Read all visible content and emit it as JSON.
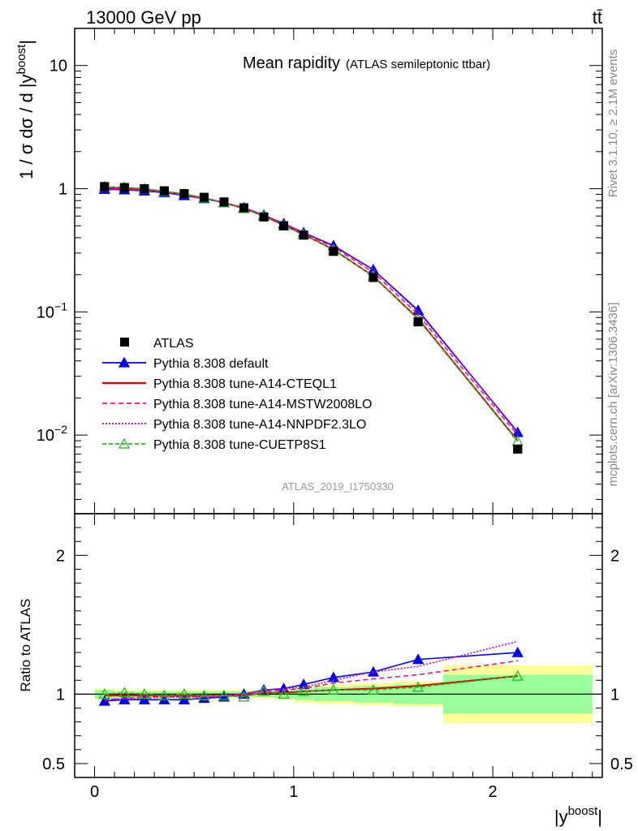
{
  "header": {
    "energy_label": "13000 GeV pp",
    "process_label": "tt̄"
  },
  "side_labels": {
    "rivet": "Rivet 3.1.10, ≥ 2.1M events",
    "source": "mcplots.cern.ch [arXiv:1306.3436]"
  },
  "analysis_id": "ATLAS_2019_I1750330",
  "chart_data": [
    {
      "type": "line",
      "title": "Mean rapidity",
      "subtitle": "(ATLAS semileptonic ttbar)",
      "ylabel": "1 / σ dσ / d |y^boost|",
      "xlabel": "|y^boost|",
      "yscale": "log",
      "xlim": [
        -0.1,
        2.55
      ],
      "ylim": [
        0.0023,
        20
      ],
      "x_ticks": [
        "0",
        "1",
        "2"
      ],
      "y_ticks": [
        "10^-2",
        "10^-1",
        "1",
        "10"
      ],
      "legend_position": "bottom-left",
      "x": [
        0.05,
        0.15,
        0.25,
        0.35,
        0.45,
        0.55,
        0.65,
        0.75,
        0.85,
        0.95,
        1.05,
        1.2,
        1.4,
        1.625,
        2.125
      ],
      "series": [
        {
          "name": "ATLAS",
          "style": "marker-square",
          "color": "#000000",
          "values": [
            1.04,
            1.02,
            1.0,
            0.96,
            0.91,
            0.85,
            0.78,
            0.7,
            0.59,
            0.5,
            0.42,
            0.31,
            0.19,
            0.083,
            0.0077
          ]
        },
        {
          "name": "Pythia 8.308 default",
          "style": "line-triangle",
          "color": "#0000ee",
          "values": [
            0.99,
            0.98,
            0.96,
            0.93,
            0.88,
            0.83,
            0.77,
            0.7,
            0.61,
            0.52,
            0.44,
            0.345,
            0.22,
            0.103,
            0.0105
          ]
        },
        {
          "name": "Pythia 8.308 tune-A14-CTEQL1",
          "style": "solid",
          "color": "#dd0000",
          "values": [
            1.02,
            1.01,
            0.99,
            0.95,
            0.9,
            0.84,
            0.77,
            0.69,
            0.6,
            0.505,
            0.425,
            0.32,
            0.195,
            0.088,
            0.009
          ]
        },
        {
          "name": "Pythia 8.308 tune-A14-MSTW2008LO",
          "style": "dashed",
          "color": "#ee1188",
          "values": [
            1.0,
            0.99,
            0.975,
            0.94,
            0.89,
            0.83,
            0.77,
            0.7,
            0.605,
            0.515,
            0.435,
            0.335,
            0.21,
            0.095,
            0.01
          ]
        },
        {
          "name": "Pythia 8.308 tune-A14-NNPDF2.3LO",
          "style": "dotted",
          "color": "#cc00cc",
          "values": [
            1.0,
            0.99,
            0.97,
            0.94,
            0.89,
            0.83,
            0.77,
            0.7,
            0.61,
            0.52,
            0.44,
            0.34,
            0.22,
            0.1,
            0.0107
          ]
        },
        {
          "name": "Pythia 8.308 tune-CUETP8S1",
          "style": "dashed-open-triangle",
          "color": "#22bb22",
          "values": [
            1.04,
            1.03,
            1.0,
            0.95,
            0.91,
            0.84,
            0.77,
            0.69,
            0.6,
            0.5,
            0.425,
            0.32,
            0.195,
            0.087,
            0.0089
          ]
        }
      ]
    },
    {
      "type": "line",
      "title": "",
      "ylabel": "Ratio to ATLAS",
      "xlabel": "|y^boost|",
      "xlim": [
        -0.1,
        2.55
      ],
      "ylim": [
        0.4,
        2.3
      ],
      "y_ticks": [
        "0.5",
        "1",
        "2"
      ],
      "reference_line": 1,
      "bins": [
        [
          0,
          0.1
        ],
        [
          0.1,
          0.2
        ],
        [
          0.2,
          0.3
        ],
        [
          0.3,
          0.4
        ],
        [
          0.4,
          0.5
        ],
        [
          0.5,
          0.6
        ],
        [
          0.6,
          0.7
        ],
        [
          0.7,
          0.8
        ],
        [
          0.8,
          0.9
        ],
        [
          0.9,
          1.0
        ],
        [
          1.0,
          1.1
        ],
        [
          1.1,
          1.3
        ],
        [
          1.3,
          1.5
        ],
        [
          1.5,
          1.75
        ],
        [
          1.75,
          2.5
        ]
      ],
      "stat_band": [
        0.03,
        0.02,
        0.02,
        0.02,
        0.02,
        0.02,
        0.02,
        0.02,
        0.02,
        0.03,
        0.04,
        0.05,
        0.06,
        0.07,
        0.14
      ],
      "total_band": [
        0.04,
        0.03,
        0.03,
        0.03,
        0.03,
        0.03,
        0.03,
        0.03,
        0.03,
        0.04,
        0.06,
        0.07,
        0.08,
        0.09,
        0.21
      ],
      "x": [
        0.05,
        0.15,
        0.25,
        0.35,
        0.45,
        0.55,
        0.65,
        0.75,
        0.85,
        0.95,
        1.05,
        1.2,
        1.4,
        1.625,
        2.125
      ],
      "series": [
        {
          "name": "Pythia 8.308 default",
          "color": "#0000ee",
          "values": [
            0.95,
            0.96,
            0.96,
            0.96,
            0.96,
            0.97,
            0.98,
            1.0,
            1.03,
            1.04,
            1.07,
            1.12,
            1.16,
            1.25,
            1.3
          ]
        },
        {
          "name": "Pythia 8.308 tune-A14-CTEQL1",
          "color": "#dd0000",
          "values": [
            0.99,
            0.99,
            0.99,
            0.99,
            0.99,
            0.99,
            0.99,
            0.99,
            1.01,
            1.01,
            1.02,
            1.03,
            1.04,
            1.06,
            1.13
          ]
        },
        {
          "name": "Pythia 8.308 tune-A14-MSTW2008LO",
          "color": "#ee1188",
          "values": [
            0.96,
            0.97,
            0.98,
            0.98,
            0.98,
            0.98,
            0.99,
            1.0,
            1.02,
            1.03,
            1.04,
            1.08,
            1.11,
            1.14,
            1.24
          ]
        },
        {
          "name": "Pythia 8.308 tune-A14-NNPDF2.3LO",
          "color": "#cc00cc",
          "values": [
            0.96,
            0.97,
            0.97,
            0.98,
            0.98,
            0.98,
            0.99,
            1.0,
            1.03,
            1.04,
            1.05,
            1.1,
            1.16,
            1.2,
            1.38
          ]
        },
        {
          "name": "Pythia 8.308 tune-CUETP8S1",
          "color": "#22bb22",
          "values": [
            1.0,
            1.01,
            1.0,
            0.99,
            1.0,
            0.99,
            0.99,
            0.98,
            1.02,
            1.0,
            1.02,
            1.03,
            1.03,
            1.05,
            1.13
          ]
        }
      ]
    }
  ]
}
